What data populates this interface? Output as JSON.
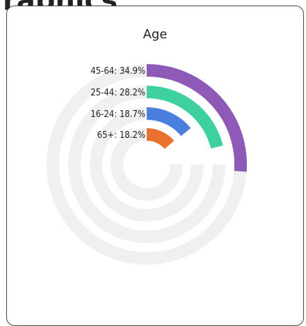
{
  "page_heading": "raphics",
  "card": {
    "title": "Age"
  },
  "chart_data": {
    "type": "radial-bar",
    "title": "Age",
    "max_value": 100,
    "track_color": "#f0f0f0",
    "series": [
      {
        "name": "45-64",
        "value": 34.9,
        "label": "45-64: 34.9%",
        "color": "#8e59b7"
      },
      {
        "name": "25-44",
        "value": 28.2,
        "label": "25-44: 28.2%",
        "color": "#3fd0a0"
      },
      {
        "name": "16-24",
        "value": 18.7,
        "label": "16-24: 18.7%",
        "color": "#4a7fe0"
      },
      {
        "name": "65+",
        "value": 18.2,
        "label": "65+: 18.2%",
        "color": "#ea7030"
      }
    ]
  }
}
